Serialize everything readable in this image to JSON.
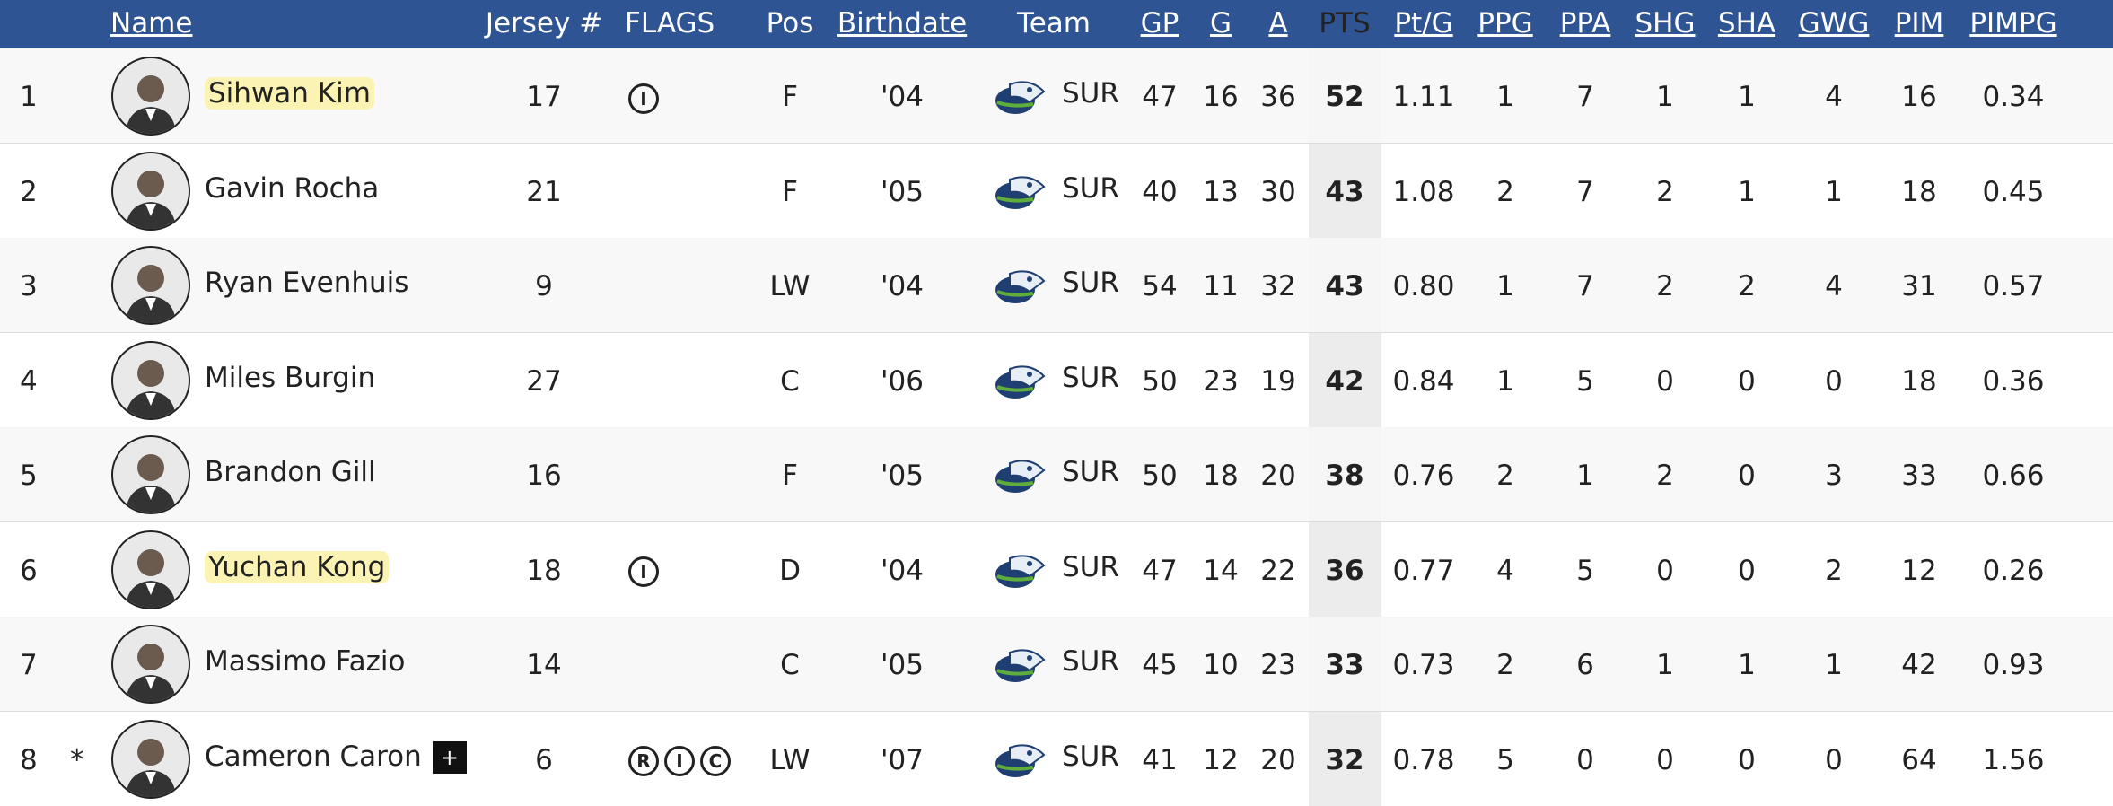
{
  "header": {
    "name": "Name",
    "jersey": "Jersey #",
    "flags": "FLAGS",
    "pos": "Pos",
    "birthdate": "Birthdate",
    "team": "Team",
    "gp": "GP",
    "g": "G",
    "a": "A",
    "pts": "PTS",
    "ptg": "Pt/G",
    "ppg": "PPG",
    "ppa": "PPA",
    "shg": "SHG",
    "sha": "SHA",
    "gwg": "GWG",
    "pim": "PIM",
    "pimpg": "PIMPG"
  },
  "rows": [
    {
      "rank": "1",
      "name": "Sihwan Kim",
      "highlight": true,
      "jersey": "17",
      "flags": [
        "I"
      ],
      "pos": "F",
      "birthdate": "'04",
      "team": "SUR",
      "gp": "47",
      "g": "16",
      "a": "36",
      "pts": "52",
      "ptg": "1.11",
      "ppg": "1",
      "ppa": "7",
      "shg": "1",
      "sha": "1",
      "gwg": "4",
      "pim": "16",
      "pimpg": "0.34"
    },
    {
      "rank": "2",
      "name": "Gavin Rocha",
      "jersey": "21",
      "flags": [],
      "pos": "F",
      "birthdate": "'05",
      "team": "SUR",
      "gp": "40",
      "g": "13",
      "a": "30",
      "pts": "43",
      "ptg": "1.08",
      "ppg": "2",
      "ppa": "7",
      "shg": "2",
      "sha": "1",
      "gwg": "1",
      "pim": "18",
      "pimpg": "0.45"
    },
    {
      "rank": "3",
      "name": "Ryan Evenhuis",
      "jersey": "9",
      "flags": [],
      "pos": "LW",
      "birthdate": "'04",
      "team": "SUR",
      "gp": "54",
      "g": "11",
      "a": "32",
      "pts": "43",
      "ptg": "0.80",
      "ppg": "1",
      "ppa": "7",
      "shg": "2",
      "sha": "2",
      "gwg": "4",
      "pim": "31",
      "pimpg": "0.57"
    },
    {
      "rank": "4",
      "name": "Miles Burgin",
      "jersey": "27",
      "flags": [],
      "pos": "C",
      "birthdate": "'06",
      "team": "SUR",
      "gp": "50",
      "g": "23",
      "a": "19",
      "pts": "42",
      "ptg": "0.84",
      "ppg": "1",
      "ppa": "5",
      "shg": "0",
      "sha": "0",
      "gwg": "0",
      "pim": "18",
      "pimpg": "0.36"
    },
    {
      "rank": "5",
      "name": "Brandon Gill",
      "jersey": "16",
      "flags": [],
      "pos": "F",
      "birthdate": "'05",
      "team": "SUR",
      "gp": "50",
      "g": "18",
      "a": "20",
      "pts": "38",
      "ptg": "0.76",
      "ppg": "2",
      "ppa": "1",
      "shg": "2",
      "sha": "0",
      "gwg": "3",
      "pim": "33",
      "pimpg": "0.66"
    },
    {
      "rank": "6",
      "name": "Yuchan Kong",
      "highlight": true,
      "jersey": "18",
      "flags": [
        "I"
      ],
      "pos": "D",
      "birthdate": "'04",
      "team": "SUR",
      "gp": "47",
      "g": "14",
      "a": "22",
      "pts": "36",
      "ptg": "0.77",
      "ppg": "4",
      "ppa": "5",
      "shg": "0",
      "sha": "0",
      "gwg": "2",
      "pim": "12",
      "pimpg": "0.26"
    },
    {
      "rank": "7",
      "name": "Massimo Fazio",
      "jersey": "14",
      "flags": [],
      "pos": "C",
      "birthdate": "'05",
      "team": "SUR",
      "gp": "45",
      "g": "10",
      "a": "23",
      "pts": "33",
      "ptg": "0.73",
      "ppg": "2",
      "ppa": "6",
      "shg": "1",
      "sha": "1",
      "gwg": "1",
      "pim": "42",
      "pimpg": "0.93"
    },
    {
      "rank": "8",
      "mark": "*",
      "name": "Cameron Caron",
      "badge": "+",
      "jersey": "6",
      "flags": [
        "R",
        "I",
        "C"
      ],
      "pos": "LW",
      "birthdate": "'07",
      "team": "SUR",
      "gp": "41",
      "g": "12",
      "a": "20",
      "pts": "32",
      "ptg": "0.78",
      "ppg": "5",
      "ppa": "0",
      "shg": "0",
      "sha": "0",
      "gwg": "0",
      "pim": "64",
      "pimpg": "1.56"
    }
  ]
}
